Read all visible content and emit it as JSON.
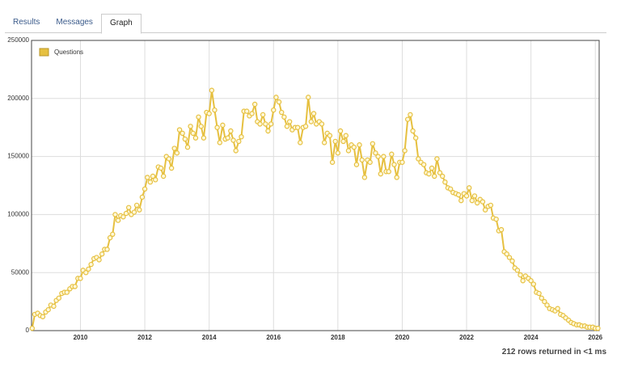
{
  "tabs": [
    "Results",
    "Messages",
    "Graph"
  ],
  "active_tab": "Graph",
  "chart_data": {
    "type": "line",
    "x": [
      2008.5,
      2008.58,
      2008.67,
      2008.75,
      2008.83,
      2008.92,
      2009,
      2009.08,
      2009.17,
      2009.25,
      2009.33,
      2009.42,
      2009.5,
      2009.58,
      2009.67,
      2009.75,
      2009.83,
      2009.92,
      2010,
      2010.08,
      2010.17,
      2010.25,
      2010.33,
      2010.42,
      2010.5,
      2010.58,
      2010.67,
      2010.75,
      2010.83,
      2010.92,
      2011,
      2011.08,
      2011.17,
      2011.25,
      2011.33,
      2011.42,
      2011.5,
      2011.58,
      2011.67,
      2011.75,
      2011.83,
      2011.92,
      2012,
      2012.08,
      2012.17,
      2012.25,
      2012.33,
      2012.42,
      2012.5,
      2012.58,
      2012.67,
      2012.75,
      2012.83,
      2012.92,
      2013,
      2013.08,
      2013.17,
      2013.25,
      2013.33,
      2013.42,
      2013.5,
      2013.58,
      2013.67,
      2013.75,
      2013.83,
      2013.92,
      2014,
      2014.08,
      2014.17,
      2014.25,
      2014.33,
      2014.42,
      2014.5,
      2014.58,
      2014.67,
      2014.75,
      2014.83,
      2014.92,
      2015,
      2015.08,
      2015.17,
      2015.25,
      2015.33,
      2015.42,
      2015.5,
      2015.58,
      2015.67,
      2015.75,
      2015.83,
      2015.92,
      2016,
      2016.08,
      2016.17,
      2016.25,
      2016.33,
      2016.42,
      2016.5,
      2016.58,
      2016.67,
      2016.75,
      2016.83,
      2016.92,
      2017,
      2017.08,
      2017.17,
      2017.25,
      2017.33,
      2017.42,
      2017.5,
      2017.58,
      2017.67,
      2017.75,
      2017.83,
      2017.92,
      2018,
      2018.08,
      2018.17,
      2018.25,
      2018.33,
      2018.42,
      2018.5,
      2018.58,
      2018.67,
      2018.75,
      2018.83,
      2018.92,
      2019,
      2019.08,
      2019.17,
      2019.25,
      2019.33,
      2019.42,
      2019.5,
      2019.58,
      2019.67,
      2019.75,
      2019.83,
      2019.92,
      2020,
      2020.08,
      2020.17,
      2020.25,
      2020.33,
      2020.42,
      2020.5,
      2020.58,
      2020.67,
      2020.75,
      2020.83,
      2020.92,
      2021,
      2021.08,
      2021.17,
      2021.25,
      2021.33,
      2021.42,
      2021.5,
      2021.58,
      2021.67,
      2021.75,
      2021.83,
      2021.92,
      2022,
      2022.08,
      2022.17,
      2022.25,
      2022.33,
      2022.42,
      2022.5,
      2022.58,
      2022.67,
      2022.75,
      2022.83,
      2022.92,
      2023,
      2023.08,
      2023.17,
      2023.25,
      2023.33,
      2023.42,
      2023.5,
      2023.58,
      2023.67,
      2023.75,
      2023.83,
      2023.92,
      2024,
      2024.08,
      2024.17,
      2024.25,
      2024.33,
      2024.42,
      2024.5,
      2024.58,
      2024.67,
      2024.75,
      2024.83,
      2024.92,
      2025,
      2025.08,
      2025.17,
      2025.25,
      2025.33,
      2025.42,
      2025.5,
      2025.58,
      2025.67,
      2025.75,
      2025.83,
      2025.92,
      2026,
      2026.08
    ],
    "series": [
      {
        "name": "Questions",
        "color": "#e6c040",
        "values": [
          2000,
          14000,
          15000,
          13000,
          12000,
          16000,
          18000,
          22000,
          21000,
          26000,
          28000,
          32000,
          33000,
          33000,
          36000,
          38000,
          38000,
          45000,
          45000,
          52000,
          50000,
          53000,
          57000,
          62000,
          63000,
          61000,
          66000,
          70000,
          70000,
          80000,
          83000,
          100000,
          95000,
          99000,
          98000,
          101000,
          106000,
          100000,
          102000,
          108000,
          104000,
          115000,
          122000,
          132000,
          128000,
          133000,
          130000,
          141000,
          140000,
          133000,
          150000,
          148000,
          140000,
          157000,
          153000,
          173000,
          170000,
          165000,
          158000,
          176000,
          170000,
          166000,
          184000,
          176000,
          166000,
          188000,
          187000,
          207000,
          190000,
          175000,
          162000,
          177000,
          165000,
          166000,
          172000,
          164000,
          155000,
          163000,
          167000,
          189000,
          189000,
          185000,
          187000,
          195000,
          180000,
          178000,
          186000,
          178000,
          172000,
          178000,
          190000,
          201000,
          197000,
          188000,
          184000,
          176000,
          180000,
          173000,
          175000,
          175000,
          162000,
          175000,
          176000,
          201000,
          180000,
          187000,
          178000,
          180000,
          178000,
          162000,
          170000,
          168000,
          145000,
          163000,
          153000,
          172000,
          163000,
          168000,
          155000,
          160000,
          158000,
          143000,
          160000,
          147000,
          132000,
          147000,
          145000,
          161000,
          153000,
          150000,
          135000,
          150000,
          137000,
          137000,
          152000,
          143000,
          132000,
          145000,
          145000,
          155000,
          182000,
          186000,
          172000,
          166000,
          148000,
          145000,
          143000,
          136000,
          135000,
          140000,
          133000,
          148000,
          136000,
          133000,
          128000,
          123000,
          122000,
          119000,
          118000,
          117000,
          112000,
          118000,
          116000,
          123000,
          112000,
          116000,
          110000,
          113000,
          111000,
          104000,
          107000,
          108000,
          97000,
          96000,
          86000,
          87000,
          68000,
          66000,
          63000,
          60000,
          54000,
          52000,
          48000,
          43000,
          47000,
          45000,
          43000,
          40000,
          33000,
          32000,
          28000,
          25000,
          22000,
          19000,
          18000,
          17000,
          19000,
          14000,
          13000,
          11000,
          9000,
          7000,
          6000,
          5000,
          5000,
          4000,
          4000,
          3000,
          3000,
          3000,
          2000,
          2000
        ]
      }
    ],
    "xlim": [
      2008.48,
      2026.12
    ],
    "xticks": [
      2010,
      2012,
      2014,
      2016,
      2018,
      2020,
      2022,
      2024,
      2026
    ],
    "ylim": [
      0,
      250000
    ],
    "yticks": [
      0,
      50000,
      100000,
      150000,
      200000,
      250000
    ],
    "grid": true,
    "legend": "top-left"
  },
  "footer": "212 rows returned in <1 ms"
}
